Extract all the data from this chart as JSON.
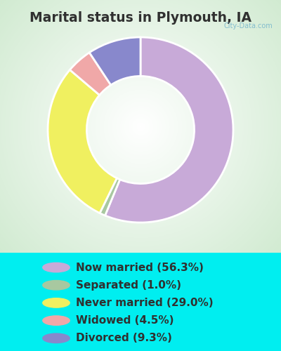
{
  "title": "Marital status in Plymouth, IA",
  "categories": [
    "Now married",
    "Separated",
    "Never married",
    "Widowed",
    "Divorced"
  ],
  "values": [
    56.3,
    1.0,
    29.0,
    4.5,
    9.3
  ],
  "colors": [
    "#c8aad8",
    "#a8c8a0",
    "#f0f060",
    "#f0a8a8",
    "#8888cc"
  ],
  "legend_colors": [
    "#c8aad8",
    "#a8c8a0",
    "#f0f060",
    "#f0a8a8",
    "#8888cc"
  ],
  "legend_labels": [
    "Now married (56.3%)",
    "Separated (1.0%)",
    "Never married (29.0%)",
    "Widowed (4.5%)",
    "Divorced (9.3%)"
  ],
  "bg_cyan": "#00eef0",
  "bg_chart_color": "#d8eed8",
  "title_color": "#303030",
  "title_fontsize": 13.5,
  "legend_fontsize": 11,
  "watermark": "City-Data.com",
  "startangle": 90,
  "donut_width": 0.42
}
